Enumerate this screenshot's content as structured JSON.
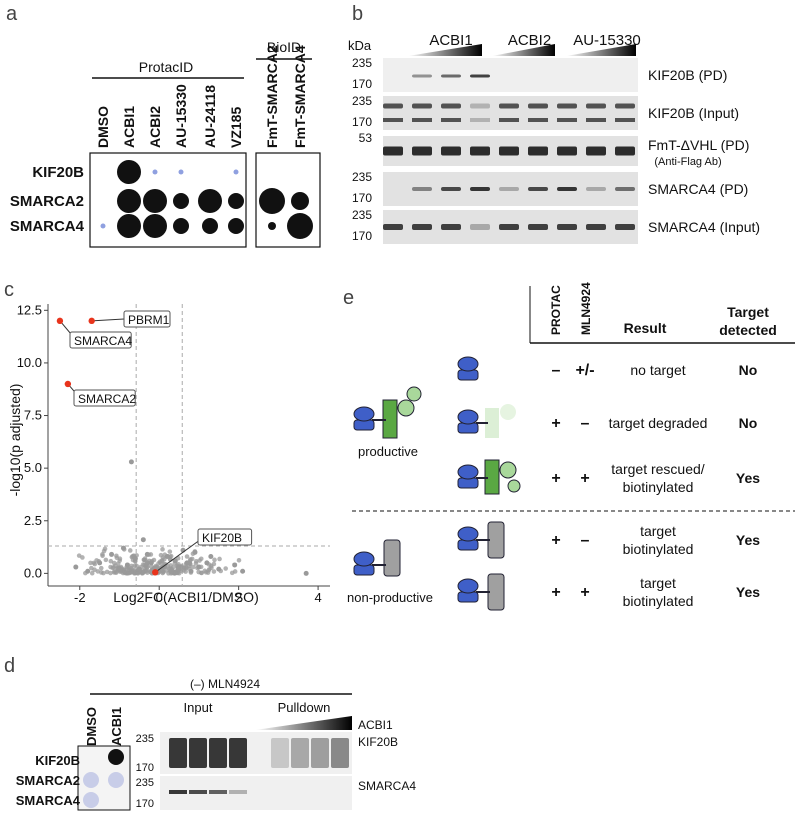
{
  "panels": {
    "a": {
      "letter": "a",
      "protacid_label": "ProtacID",
      "bioid_label": "BioID",
      "protac_columns": [
        "DMSO",
        "ACBI1",
        "ACBI2",
        "AU-15330",
        "AU-24118",
        "VZ185"
      ],
      "bioid_columns": [
        "FmT-SMARCA2",
        "FmT-SMARCA4"
      ],
      "rows": [
        "KIF20B",
        "SMARCA2",
        "SMARCA4"
      ],
      "dot_levels_protac": [
        [
          0,
          3,
          1,
          1,
          0,
          1
        ],
        [
          0,
          3,
          3,
          2,
          3,
          2
        ],
        [
          1,
          3,
          3,
          2,
          2,
          2
        ]
      ],
      "dot_levels_bioid": [
        [
          0,
          0
        ],
        [
          3,
          2
        ],
        [
          1,
          3
        ]
      ],
      "highlight_column": "AU-24118",
      "highlight_color": "#4a63c4"
    },
    "b": {
      "letter": "b",
      "kda_label": "kDa",
      "groups": [
        "ACBI1",
        "ACBI2",
        "AU-15330"
      ],
      "blots": [
        {
          "label": "KIF20B (PD)",
          "sublabel": "",
          "markers": [
            "235",
            "170"
          ]
        },
        {
          "label": "KIF20B (Input)",
          "sublabel": "",
          "markers": [
            "235",
            "170"
          ]
        },
        {
          "label": "FmT-ΔVHL (PD)",
          "sublabel": "(Anti-Flag Ab)",
          "markers": [
            "53"
          ]
        },
        {
          "label": "SMARCA4 (PD)",
          "sublabel": "",
          "markers": [
            "235",
            "170"
          ]
        },
        {
          "label": "SMARCA4 (Input)",
          "sublabel": "",
          "markers": [
            "235",
            "170"
          ]
        }
      ]
    },
    "c": {
      "letter": "c",
      "labels": [
        "PBRM1",
        "SMARCA4",
        "SMARCA2",
        "KIF20B"
      ]
    },
    "d": {
      "letter": "d",
      "condition": "(–) MLN4924",
      "dot_columns": [
        "DMSO",
        "ACBI1"
      ],
      "dot_rows": [
        "KIF20B",
        "SMARCA2",
        "SMARCA4"
      ],
      "input_label": "Input",
      "pulldown_label": "Pulldown",
      "gradient_label": "ACBI1",
      "blots": [
        {
          "label": "KIF20B",
          "markers": [
            "235",
            "170"
          ]
        },
        {
          "label": "SMARCA4",
          "markers": [
            "235",
            "170"
          ]
        }
      ]
    },
    "e": {
      "letter": "e",
      "headers": {
        "protac": "PROTAC",
        "mln": "MLN4924",
        "result": "Result",
        "target": "Target detected"
      },
      "productive_label": "productive",
      "nonproductive_label": "non-productive",
      "rows": [
        {
          "protac": "–",
          "mln": "+/-",
          "result": "no target",
          "detected": "No"
        },
        {
          "protac": "+",
          "mln": "–",
          "result": "target degraded",
          "detected": "No"
        },
        {
          "protac": "+",
          "mln": "+",
          "result": "target rescued/ biotinylated",
          "detected": "Yes"
        },
        {
          "protac": "+",
          "mln": "–",
          "result": "target biotinylated",
          "detected": "Yes"
        },
        {
          "protac": "+",
          "mln": "+",
          "result": "target biotinylated",
          "detected": "Yes"
        }
      ]
    }
  },
  "chart_data": {
    "type": "scatter",
    "title": "",
    "xlabel": "Log2FC(ACBI1/DMSO)",
    "ylabel": "-log10(p adjusted)",
    "xlim": [
      -2.8,
      4.3
    ],
    "ylim": [
      -0.6,
      12.8
    ],
    "xticks": [
      -2,
      0,
      2,
      4
    ],
    "yticks": [
      0.0,
      2.5,
      5.0,
      7.5,
      10.0,
      12.5
    ],
    "ytick_labels": [
      "0.0",
      "2.5",
      "5.0",
      "7.5",
      "10.0",
      "12.5"
    ],
    "thresholds": {
      "x": [
        -0.58,
        0.58
      ],
      "y": 1.3
    },
    "highlighted": [
      {
        "name": "SMARCA4",
        "x": -2.5,
        "y": 12.0
      },
      {
        "name": "PBRM1",
        "x": -1.7,
        "y": 12.0
      },
      {
        "name": "SMARCA2",
        "x": -2.3,
        "y": 9.0
      },
      {
        "name": "KIF20B",
        "x": -0.1,
        "y": 0.05
      }
    ],
    "background_points": [
      [
        -0.7,
        5.3
      ],
      [
        -0.4,
        1.6
      ],
      [
        -0.9,
        1.2
      ],
      [
        0.6,
        1.1
      ],
      [
        0.9,
        1.0
      ],
      [
        1.3,
        0.8
      ],
      [
        -1.2,
        0.9
      ],
      [
        -1.5,
        0.5
      ],
      [
        -2.1,
        0.3
      ],
      [
        1.9,
        0.4
      ],
      [
        2.1,
        0.1
      ],
      [
        3.7,
        0.0
      ],
      [
        -0.3,
        0.9
      ],
      [
        0.2,
        0.8
      ],
      [
        0.4,
        0.6
      ],
      [
        -0.6,
        0.7
      ],
      [
        -0.2,
        0.5
      ],
      [
        0.1,
        0.3
      ],
      [
        0.5,
        0.2
      ],
      [
        -0.5,
        0.2
      ],
      [
        -0.8,
        0.4
      ],
      [
        0.7,
        0.5
      ],
      [
        1.0,
        0.3
      ],
      [
        -1.0,
        0.2
      ],
      [
        0.3,
        0.1
      ],
      [
        -0.1,
        0.2
      ],
      [
        1.5,
        0.2
      ],
      [
        -1.8,
        0.1
      ],
      [
        0.8,
        0.1
      ],
      [
        1.2,
        0.5
      ]
    ],
    "highlight_color": "#e8341c",
    "point_color": "#9a9a9a"
  }
}
